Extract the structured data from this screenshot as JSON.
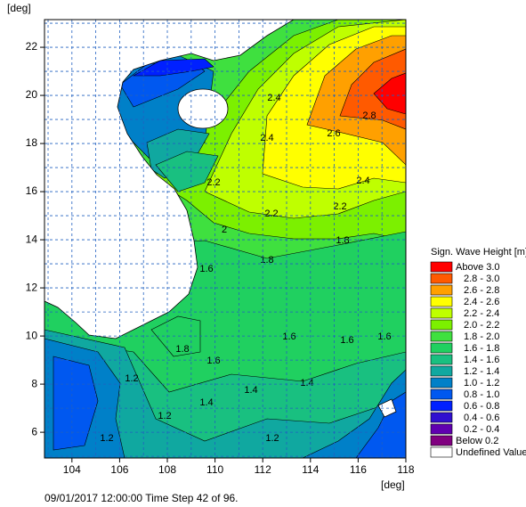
{
  "chart_data": {
    "type": "contour",
    "x_label": "[deg]",
    "y_label": "[deg]",
    "xlim": [
      102.85,
      118
    ],
    "ylim": [
      4.93,
      23.15
    ],
    "xticks": [
      104,
      106,
      108,
      110,
      112,
      114,
      116,
      118
    ],
    "yticks": [
      6,
      8,
      10,
      12,
      14,
      16,
      18,
      20,
      22
    ],
    "grid": true,
    "xgrid": [
      103,
      104,
      105,
      106,
      107,
      108,
      109,
      110,
      111,
      112,
      113,
      114,
      115,
      116,
      117
    ],
    "ygrid": [
      5,
      6,
      7,
      8,
      9,
      10,
      11,
      12,
      13,
      14,
      15,
      16,
      17,
      18,
      19,
      20,
      21,
      22,
      23
    ],
    "contour_labels": [
      "2.8",
      "2.6",
      "2.4",
      "2.4",
      "2.4",
      "2.2",
      "2.2",
      "2.2",
      "2",
      "1.8",
      "1.8",
      "1.8",
      "1.6",
      "1.6",
      "1.6",
      "1.6",
      "1.6",
      "1.4",
      "1.4",
      "1.4",
      "1.2",
      "1.2",
      "1.2",
      "1.2"
    ],
    "legend": {
      "title": "Sign. Wave Height [m]",
      "position": "right",
      "items": [
        {
          "label": "Above 3.0",
          "color": "#ff0000"
        },
        {
          "label": "2.8 - 3.0",
          "color": "#ff5a00"
        },
        {
          "label": "2.6 - 2.8",
          "color": "#ffa000"
        },
        {
          "label": "2.4 - 2.6",
          "color": "#ffff00"
        },
        {
          "label": "2.2 - 2.4",
          "color": "#bfff00"
        },
        {
          "label": "2.0 - 2.2",
          "color": "#7cf000"
        },
        {
          "label": "1.8 - 2.0",
          "color": "#3fe03f"
        },
        {
          "label": "1.6 - 1.8",
          "color": "#20d060"
        },
        {
          "label": "1.4 - 1.6",
          "color": "#19c080"
        },
        {
          "label": "1.2 - 1.4",
          "color": "#10a8a0"
        },
        {
          "label": "1.0 - 1.2",
          "color": "#0080c8"
        },
        {
          "label": "0.8 - 1.0",
          "color": "#0058f0"
        },
        {
          "label": "0.6 - 0.8",
          "color": "#0020ff"
        },
        {
          "label": "0.4 - 0.6",
          "color": "#3010d0"
        },
        {
          "label": "0.2 - 0.4",
          "color": "#6000b0"
        },
        {
          "label": "Below 0.2",
          "color": "#800080"
        },
        {
          "label": "Undefined Value",
          "color": "#ffffff"
        }
      ]
    },
    "footer": "09/01/2017 12:00:00  Time Step 42 of 96."
  }
}
